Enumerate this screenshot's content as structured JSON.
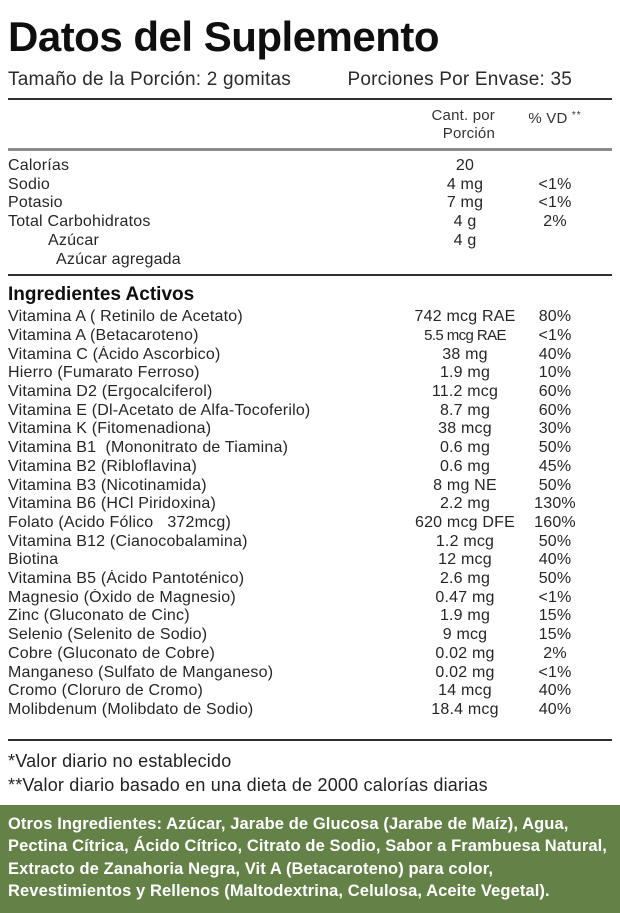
{
  "header": {
    "title": "Datos del Suplemento",
    "serving_size": "Tamaño de la Porción: 2 gomitas",
    "servings_per_container": "Porciones Por Envase: 35"
  },
  "columns": {
    "amount": "Cant. por Porción",
    "dv": "% VD",
    "dv_mark": "**"
  },
  "nutrients": [
    {
      "name": "Calorías",
      "amount": "20",
      "dv": "",
      "indent": 0
    },
    {
      "name": "Sodio",
      "amount": "4 mg",
      "dv": "<1%",
      "indent": 0
    },
    {
      "name": "Potasio",
      "amount": "7 mg",
      "dv": "<1%",
      "indent": 0
    },
    {
      "name": "Total Carbohidratos",
      "amount": "4 g",
      "dv": "2%",
      "indent": 0
    },
    {
      "name": "Azúcar",
      "amount": "4 g",
      "dv": "",
      "indent": 1
    },
    {
      "name": "Azúcar agregada",
      "amount": "",
      "dv": "",
      "indent": 2
    }
  ],
  "active_section_title": "Ingredientes Activos",
  "active_ingredients": [
    {
      "name": "Vitamina A ( Retinilo de Acetato)",
      "amount": "742 mcg RAE",
      "dv": "80%"
    },
    {
      "name": "Vitamina A (Betacaroteno)",
      "amount": "5.5 mcg RAE",
      "dv": "<1%",
      "tight": true
    },
    {
      "name": "Vitamina C (Ácido Ascorbico)",
      "amount": "38 mg",
      "dv": "40%"
    },
    {
      "name": "Hierro (Fumarato Ferroso)",
      "amount": "1.9 mg",
      "dv": "10%"
    },
    {
      "name": "Vitamina D2 (Ergocalciferol)",
      "amount": "11.2 mcg",
      "dv": "60%"
    },
    {
      "name": "Vitamina E (Dl-Acetato de Alfa-Tocoferilo)",
      "amount": "8.7 mg",
      "dv": "60%"
    },
    {
      "name": "Vitamina K (Fitomenadiona)",
      "amount": "38 mcg",
      "dv": "30%"
    },
    {
      "name": "Vitamina B1  (Mononitrato de Tiamina)",
      "amount": "0.6 mg",
      "dv": "50%"
    },
    {
      "name": "Vitamina B2 (Ribloflavina)",
      "amount": "0.6 mg",
      "dv": "45%"
    },
    {
      "name": "Vitamina B3 (Nicotinamida)",
      "amount": "8 mg NE",
      "dv": "50%"
    },
    {
      "name": "Vitamina B6 (HCl Piridoxina)",
      "amount": "2.2 mg",
      "dv": "130%"
    },
    {
      "name": "Folato (Acido Fólico   372mcg)",
      "amount": "620 mcg DFE",
      "dv": "160%"
    },
    {
      "name": "Vitamina B12 (Cianocobalamina)",
      "amount": "1.2 mcg",
      "dv": "50%"
    },
    {
      "name": "Biotina",
      "amount": "12 mcg",
      "dv": "40%"
    },
    {
      "name": "Vitamina B5 (Ácido Pantoténico)",
      "amount": "2.6 mg",
      "dv": "50%"
    },
    {
      "name": "Magnesio (Óxido de Magnesio)",
      "amount": "0.47 mg",
      "dv": "<1%"
    },
    {
      "name": "Zinc (Gluconato de Cinc)",
      "amount": "1.9 mg",
      "dv": "15%"
    },
    {
      "name": "Selenio (Selenito de Sodio)",
      "amount": "9 mcg",
      "dv": "15%"
    },
    {
      "name": "Cobre (Gluconato de Cobre)",
      "amount": "0.02 mg",
      "dv": "2%"
    },
    {
      "name": "Manganeso (Sulfato de Manganeso)",
      "amount": "0.02 mg",
      "dv": "<1%"
    },
    {
      "name": "Cromo (Cloruro de Cromo)",
      "amount": "14 mcg",
      "dv": "40%"
    },
    {
      "name": "Molibdenum (Molibdato de Sodio)",
      "amount": "18.4 mcg",
      "dv": "40%"
    }
  ],
  "footnotes": [
    "*Valor diario no establecido",
    "**Valor diario basado en una dieta de 2000 calorías diarias"
  ],
  "other_ingredients": {
    "text": "Otros Ingredientes: Azúcar, Jarabe de Glucosa (Jarabe de Maíz), Agua, Pectina Cítrica, Ácido Cítrico, Citrato de Sodio, Sabor a Frambuesa Natural, Extracto de Zanahoria Negra, Vit A (Betacaroteno) para color, Revestimientos y Rellenos (Maltodextrina, Celulosa, Aceite Vegetal).",
    "bg_color": "#648247",
    "text_color": "#ffffff"
  }
}
